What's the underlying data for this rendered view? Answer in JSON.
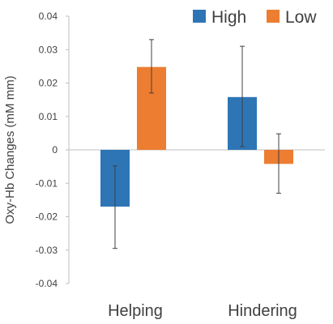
{
  "chart_data": {
    "type": "bar",
    "ylabel": "Oxy-Hb Changes (mM mm)",
    "xlabel": "",
    "categories": [
      "Helping",
      "Hindering"
    ],
    "ylim": [
      -0.04,
      0.04
    ],
    "yticks": [
      0.04,
      0.03,
      0.02,
      0.01,
      0,
      -0.01,
      -0.02,
      -0.03,
      -0.04
    ],
    "ytick_labels": [
      "0.04",
      "0.03",
      "0.02",
      "0.01",
      "0",
      "-0.01",
      "-0.02",
      "-0.03",
      "-0.04"
    ],
    "grid": false,
    "legend_position": "top-right",
    "series": [
      {
        "name": "High",
        "color": "#2E75B6",
        "values": [
          -0.017,
          0.0158
        ],
        "error_low": [
          -0.0295,
          0.001
        ],
        "error_high": [
          -0.0048,
          0.031
        ]
      },
      {
        "name": "Low",
        "color": "#ED7D31",
        "values": [
          0.0248,
          -0.0042
        ],
        "error_low": [
          0.017,
          -0.013
        ],
        "error_high": [
          0.033,
          0.0048
        ]
      }
    ]
  }
}
